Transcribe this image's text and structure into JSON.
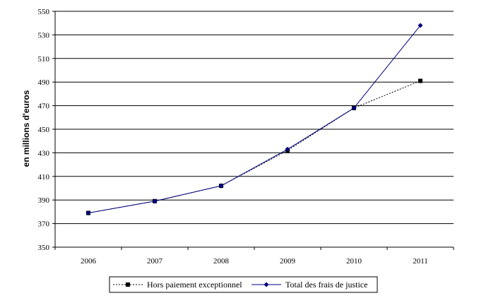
{
  "chart_data": {
    "type": "line",
    "title": "",
    "xlabel": "",
    "ylabel": "en millions d'euros",
    "categories": [
      "2006",
      "2007",
      "2008",
      "2009",
      "2010",
      "2011"
    ],
    "ylim": [
      350,
      550
    ],
    "yticks": [
      350,
      370,
      390,
      410,
      430,
      450,
      470,
      490,
      510,
      530,
      550
    ],
    "grid": true,
    "legend_position": "bottom",
    "series": [
      {
        "name": "Hors paiement exceptionnel",
        "values": [
          379,
          389,
          402,
          432,
          468,
          491
        ],
        "color": "#000000",
        "line_style": "dotted",
        "marker": "square"
      },
      {
        "name": "Total des frais de justice",
        "values": [
          379,
          389,
          402,
          433,
          468,
          538
        ],
        "color": "#000080",
        "line_style": "solid",
        "marker": "diamond"
      }
    ]
  }
}
